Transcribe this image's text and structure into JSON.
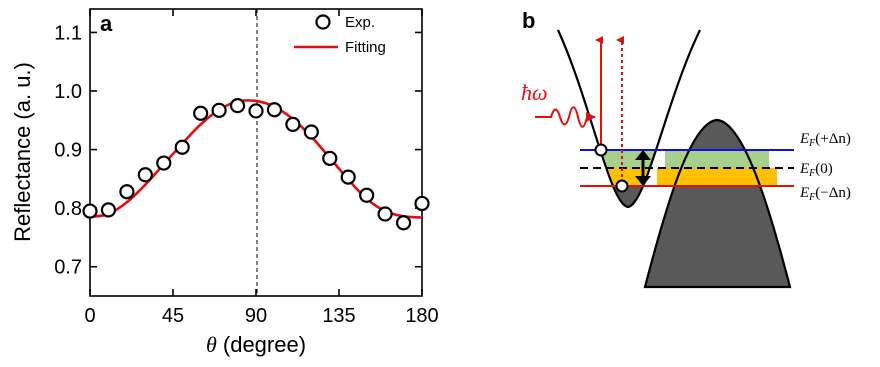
{
  "panel_a": {
    "letter": "a",
    "xlabel_symbol": "θ",
    "xlabel_text": " (degree)",
    "ylabel": "Reflectance (a. u.)",
    "legend_exp": "Exp.",
    "legend_fit": "Fitting"
  },
  "panel_b": {
    "letter": "b",
    "photon": "ħω",
    "ef_plus": "E",
    "ef_plus_sub": "F",
    "ef_plus_arg": "(+Δn)",
    "ef_zero": "E",
    "ef_zero_sub": "F",
    "ef_zero_arg": "(0)",
    "ef_minus": "E",
    "ef_minus_sub": "F",
    "ef_minus_arg": "(−Δn)"
  },
  "colors": {
    "fit": "#e01010",
    "exp": "#000000",
    "blue_level": "#1010e0",
    "red_level": "#e01010",
    "green_fill": "#a8d08d",
    "orange_fill": "#ffc000",
    "valence_fill": "#595959",
    "dashed_ref": "#000000"
  },
  "chart_data": {
    "type": "scatter",
    "title": "",
    "xlabel": "θ (degree)",
    "ylabel": "Reflectance (a. u.)",
    "xlim": [
      0,
      180
    ],
    "ylim": [
      0.65,
      1.14
    ],
    "xticks": [
      0,
      45,
      90,
      135,
      180
    ],
    "yticks": [
      0.7,
      0.8,
      0.9,
      1.0,
      1.1
    ],
    "xtick_labels": [
      "0",
      "45",
      "90",
      "135",
      "180"
    ],
    "ytick_labels": [
      "0.7",
      "0.8",
      "0.9",
      "1.0",
      "1.1"
    ],
    "reference_line_x": 90,
    "legend_position": "top-right",
    "series": [
      {
        "name": "Exp.",
        "marker": "open-circle",
        "x": [
          0,
          10,
          20,
          30,
          40,
          50,
          60,
          70,
          80,
          90,
          100,
          110,
          120,
          130,
          140,
          150,
          160,
          170,
          180
        ],
        "y": [
          0.795,
          0.797,
          0.828,
          0.857,
          0.877,
          0.904,
          0.962,
          0.967,
          0.975,
          0.966,
          0.968,
          0.943,
          0.93,
          0.885,
          0.853,
          0.822,
          0.79,
          0.775,
          0.808
        ]
      },
      {
        "name": "Fitting",
        "style": "line",
        "x": [
          0,
          10,
          20,
          30,
          40,
          50,
          60,
          70,
          80,
          90,
          100,
          110,
          120,
          130,
          140,
          150,
          160,
          170,
          180
        ],
        "y": [
          0.785,
          0.79,
          0.81,
          0.84,
          0.875,
          0.91,
          0.943,
          0.968,
          0.982,
          0.983,
          0.973,
          0.952,
          0.922,
          0.886,
          0.849,
          0.816,
          0.795,
          0.786,
          0.784
        ]
      }
    ]
  }
}
